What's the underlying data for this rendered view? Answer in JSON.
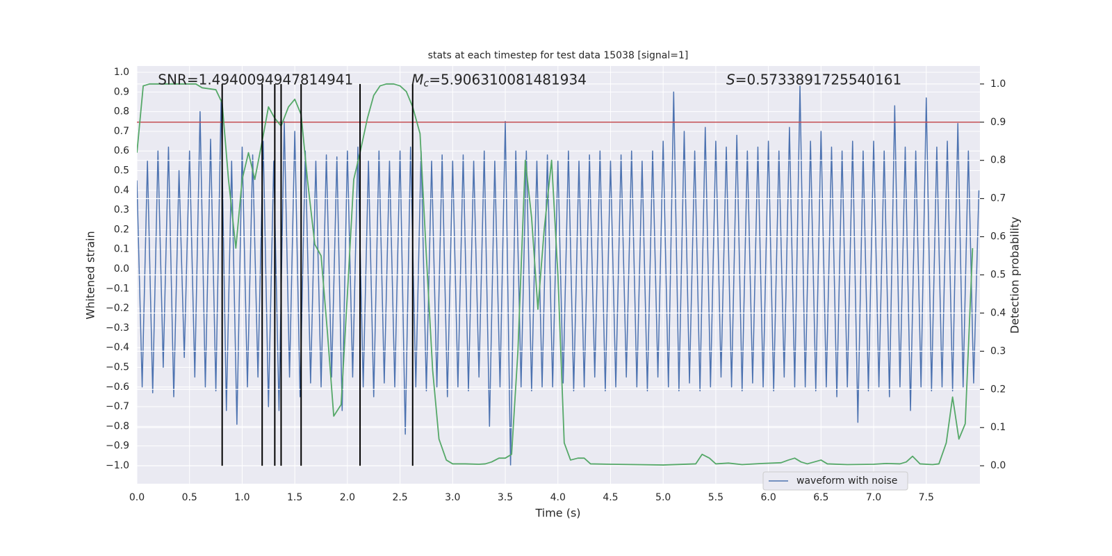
{
  "chart_data": {
    "type": "line",
    "title": "stats at each timestep for test data 15038 [signal=1]",
    "xlabel": "Time (s)",
    "ylabel": "Whitened strain",
    "y2label": "Detection probability",
    "annotations": [
      {
        "text": "SNR=1.4940094947814941",
        "x": 0.2,
        "y": 0.96
      },
      {
        "symbol": "M",
        "subscript": "c",
        "text": "=5.906310081481934",
        "x": 2.61,
        "y": 0.96
      },
      {
        "symbol": "S",
        "text": "=0.5733891725540161",
        "x": 5.6,
        "y": 0.96
      }
    ],
    "series": [
      {
        "name": "waveform with noise",
        "color": "#4c72b0",
        "x": [
          0,
          0.05,
          0.1,
          0.15,
          0.2,
          0.25,
          0.3,
          0.35,
          0.4,
          0.45,
          0.5,
          0.55,
          0.6,
          0.65,
          0.7,
          0.75,
          0.8,
          0.85,
          0.9,
          0.95,
          1,
          1.05,
          1.1,
          1.15,
          1.2,
          1.25,
          1.3,
          1.35,
          1.4,
          1.45,
          1.5,
          1.55,
          1.6,
          1.65,
          1.7,
          1.75,
          1.8,
          1.85,
          1.9,
          1.95,
          2,
          2.05,
          2.1,
          2.15,
          2.2,
          2.25,
          2.3,
          2.35,
          2.4,
          2.45,
          2.5,
          2.55,
          2.6,
          2.65,
          2.7,
          2.75,
          2.8,
          2.85,
          2.9,
          2.95,
          3,
          3.05,
          3.1,
          3.15,
          3.2,
          3.25,
          3.3,
          3.35,
          3.4,
          3.45,
          3.5,
          3.55,
          3.6,
          3.65,
          3.7,
          3.75,
          3.8,
          3.85,
          3.9,
          3.95,
          4,
          4.05,
          4.1,
          4.15,
          4.2,
          4.25,
          4.3,
          4.35,
          4.4,
          4.45,
          4.5,
          4.55,
          4.6,
          4.65,
          4.7,
          4.75,
          4.8,
          4.85,
          4.9,
          4.95,
          5,
          5.05,
          5.1,
          5.15,
          5.2,
          5.25,
          5.3,
          5.35,
          5.4,
          5.45,
          5.5,
          5.55,
          5.6,
          5.65,
          5.7,
          5.75,
          5.8,
          5.85,
          5.9,
          5.95,
          6,
          6.05,
          6.1,
          6.15,
          6.2,
          6.25,
          6.3,
          6.35,
          6.4,
          6.45,
          6.5,
          6.55,
          6.6,
          6.65,
          6.7,
          6.75,
          6.8,
          6.85,
          6.9,
          6.95,
          7,
          7.05,
          7.1,
          7.15,
          7.2,
          7.25,
          7.3,
          7.35,
          7.4,
          7.45,
          7.5,
          7.55,
          7.6,
          7.65,
          7.7,
          7.75,
          7.8,
          7.85,
          7.9,
          7.95,
          8
        ],
        "values": [
          0.45,
          -0.6,
          0.55,
          -0.63,
          0.6,
          -0.5,
          0.62,
          -0.65,
          0.5,
          -0.45,
          0.6,
          -0.55,
          0.8,
          -0.6,
          0.66,
          -0.62,
          0.86,
          -0.72,
          0.55,
          -0.79,
          0.62,
          -0.6,
          0.58,
          -0.55,
          0.65,
          -0.7,
          0.55,
          -0.72,
          0.75,
          -0.55,
          0.7,
          -0.65,
          0.6,
          -0.58,
          0.55,
          -0.6,
          0.58,
          -0.55,
          0.57,
          -0.72,
          0.6,
          -0.55,
          0.62,
          -0.6,
          0.55,
          -0.65,
          0.6,
          -0.58,
          0.55,
          -0.6,
          0.6,
          -0.84,
          0.62,
          -0.6,
          0.6,
          -0.62,
          0.55,
          -0.6,
          0.58,
          -0.65,
          0.55,
          -0.6,
          0.58,
          -0.62,
          0.55,
          -0.55,
          0.6,
          -0.8,
          0.55,
          -0.6,
          0.75,
          -1.0,
          0.6,
          -0.6,
          0.6,
          -0.62,
          0.55,
          -0.6,
          0.58,
          -0.6,
          0.55,
          -0.58,
          0.6,
          -0.62,
          0.55,
          -0.6,
          0.58,
          -0.55,
          0.6,
          -0.62,
          0.55,
          -0.6,
          0.58,
          -0.55,
          0.6,
          -0.6,
          0.55,
          -0.62,
          0.6,
          -0.55,
          0.65,
          -0.6,
          0.9,
          -0.62,
          0.7,
          -0.58,
          0.6,
          -0.62,
          0.72,
          -0.6,
          0.65,
          -0.55,
          0.62,
          -0.6,
          0.68,
          -0.62,
          0.6,
          -0.58,
          0.62,
          -0.6,
          0.65,
          -0.62,
          0.6,
          -0.55,
          0.72,
          -0.6,
          0.93,
          -0.6,
          0.65,
          -0.62,
          0.7,
          -0.6,
          0.62,
          -0.65,
          0.6,
          -0.6,
          0.65,
          -0.78,
          0.6,
          -0.62,
          0.65,
          -0.6,
          0.6,
          -0.65,
          0.83,
          -0.6,
          0.62,
          -0.72,
          0.6,
          -0.6,
          0.87,
          -0.62,
          0.62,
          -0.6,
          0.65,
          -0.62,
          0.74,
          -0.6,
          0.6,
          -0.58,
          0.4
        ]
      }
    ],
    "probability": {
      "color": "#55a868",
      "axis": "y2",
      "x": [
        0,
        0.06,
        0.12,
        0.25,
        0.4,
        0.56,
        0.62,
        0.75,
        0.81,
        0.87,
        0.94,
        1.0,
        1.06,
        1.12,
        1.19,
        1.25,
        1.31,
        1.37,
        1.44,
        1.5,
        1.56,
        1.62,
        1.69,
        1.75,
        1.81,
        1.87,
        1.94,
        2.0,
        2.06,
        2.12,
        2.19,
        2.25,
        2.31,
        2.37,
        2.44,
        2.5,
        2.56,
        2.62,
        2.69,
        2.75,
        2.81,
        2.87,
        2.94,
        3.0,
        3.12,
        3.25,
        3.31,
        3.37,
        3.44,
        3.5,
        3.56,
        3.62,
        3.69,
        3.75,
        3.81,
        3.87,
        3.94,
        4.0,
        4.06,
        4.12,
        4.19,
        4.25,
        4.31,
        4.5,
        5.0,
        5.31,
        5.37,
        5.44,
        5.5,
        5.62,
        5.75,
        5.94,
        6.12,
        6.19,
        6.25,
        6.31,
        6.37,
        6.5,
        6.56,
        6.75,
        7.0,
        7.12,
        7.25,
        7.31,
        7.37,
        7.44,
        7.56,
        7.62,
        7.69,
        7.75,
        7.81,
        7.87,
        7.94
      ],
      "values": [
        0.82,
        0.995,
        1.0,
        1.0,
        1.0,
        1.0,
        0.99,
        0.985,
        0.95,
        0.75,
        0.57,
        0.75,
        0.82,
        0.75,
        0.85,
        0.94,
        0.91,
        0.89,
        0.94,
        0.96,
        0.92,
        0.75,
        0.58,
        0.55,
        0.35,
        0.13,
        0.16,
        0.45,
        0.75,
        0.82,
        0.91,
        0.97,
        0.995,
        1.0,
        1.0,
        0.995,
        0.98,
        0.94,
        0.87,
        0.55,
        0.25,
        0.07,
        0.015,
        0.005,
        0.005,
        0.004,
        0.005,
        0.01,
        0.02,
        0.02,
        0.03,
        0.3,
        0.8,
        0.65,
        0.41,
        0.62,
        0.8,
        0.5,
        0.06,
        0.015,
        0.02,
        0.02,
        0.005,
        0.004,
        0.002,
        0.005,
        0.03,
        0.02,
        0.005,
        0.007,
        0.003,
        0.006,
        0.008,
        0.015,
        0.02,
        0.01,
        0.005,
        0.015,
        0.005,
        0.003,
        0.004,
        0.006,
        0.005,
        0.01,
        0.025,
        0.005,
        0.003,
        0.005,
        0.06,
        0.18,
        0.07,
        0.11,
        0.57
      ]
    },
    "threshold": {
      "value": 0.9,
      "axis": "y2",
      "color": "#c44e52"
    },
    "markers": {
      "x": [
        0.81,
        1.19,
        1.31,
        1.37,
        1.56,
        2.12,
        2.62
      ],
      "ymin": 0,
      "ymax": 1,
      "axis": "y2",
      "color": "#000000"
    },
    "xlim": [
      0,
      8.01
    ],
    "ylim": [
      -1.092,
      1.032
    ],
    "y2lim": [
      -0.047,
      1.047
    ],
    "xticks": [
      {
        "value": 0,
        "label": "0.0"
      },
      {
        "value": 0.5,
        "label": "0.5"
      },
      {
        "value": 1,
        "label": "1.0"
      },
      {
        "value": 1.5,
        "label": "1.5"
      },
      {
        "value": 2,
        "label": "2.0"
      },
      {
        "value": 2.5,
        "label": "2.5"
      },
      {
        "value": 3,
        "label": "3.0"
      },
      {
        "value": 3.5,
        "label": "3.5"
      },
      {
        "value": 4,
        "label": "4.0"
      },
      {
        "value": 4.5,
        "label": "4.5"
      },
      {
        "value": 5,
        "label": "5.0"
      },
      {
        "value": 5.5,
        "label": "5.5"
      },
      {
        "value": 6,
        "label": "6.0"
      },
      {
        "value": 6.5,
        "label": "6.5"
      },
      {
        "value": 7,
        "label": "7.0"
      },
      {
        "value": 7.5,
        "label": "7.5"
      }
    ],
    "yticks": [
      {
        "value": -1,
        "label": "−1.0"
      },
      {
        "value": -0.9,
        "label": "−0.9"
      },
      {
        "value": -0.8,
        "label": "−0.8"
      },
      {
        "value": -0.7,
        "label": "−0.7"
      },
      {
        "value": -0.6,
        "label": "−0.6"
      },
      {
        "value": -0.5,
        "label": "−0.5"
      },
      {
        "value": -0.4,
        "label": "−0.4"
      },
      {
        "value": -0.3,
        "label": "−0.3"
      },
      {
        "value": -0.2,
        "label": "−0.2"
      },
      {
        "value": -0.1,
        "label": "−0.1"
      },
      {
        "value": 0,
        "label": "0.0"
      },
      {
        "value": 0.1,
        "label": "0.1"
      },
      {
        "value": 0.2,
        "label": "0.2"
      },
      {
        "value": 0.3,
        "label": "0.3"
      },
      {
        "value": 0.4,
        "label": "0.4"
      },
      {
        "value": 0.5,
        "label": "0.5"
      },
      {
        "value": 0.6,
        "label": "0.6"
      },
      {
        "value": 0.7,
        "label": "0.7"
      },
      {
        "value": 0.8,
        "label": "0.8"
      },
      {
        "value": 0.9,
        "label": "0.9"
      },
      {
        "value": 1,
        "label": "1.0"
      }
    ],
    "y2ticks": [
      {
        "value": 0,
        "label": "0.0"
      },
      {
        "value": 0.1,
        "label": "0.1"
      },
      {
        "value": 0.2,
        "label": "0.2"
      },
      {
        "value": 0.3,
        "label": "0.3"
      },
      {
        "value": 0.4,
        "label": "0.4"
      },
      {
        "value": 0.5,
        "label": "0.5"
      },
      {
        "value": 0.6,
        "label": "0.6"
      },
      {
        "value": 0.7,
        "label": "0.7"
      },
      {
        "value": 0.8,
        "label": "0.8"
      },
      {
        "value": 0.9,
        "label": "0.9"
      },
      {
        "value": 1,
        "label": "1.0"
      }
    ],
    "grid": true,
    "legend": "lower right"
  }
}
